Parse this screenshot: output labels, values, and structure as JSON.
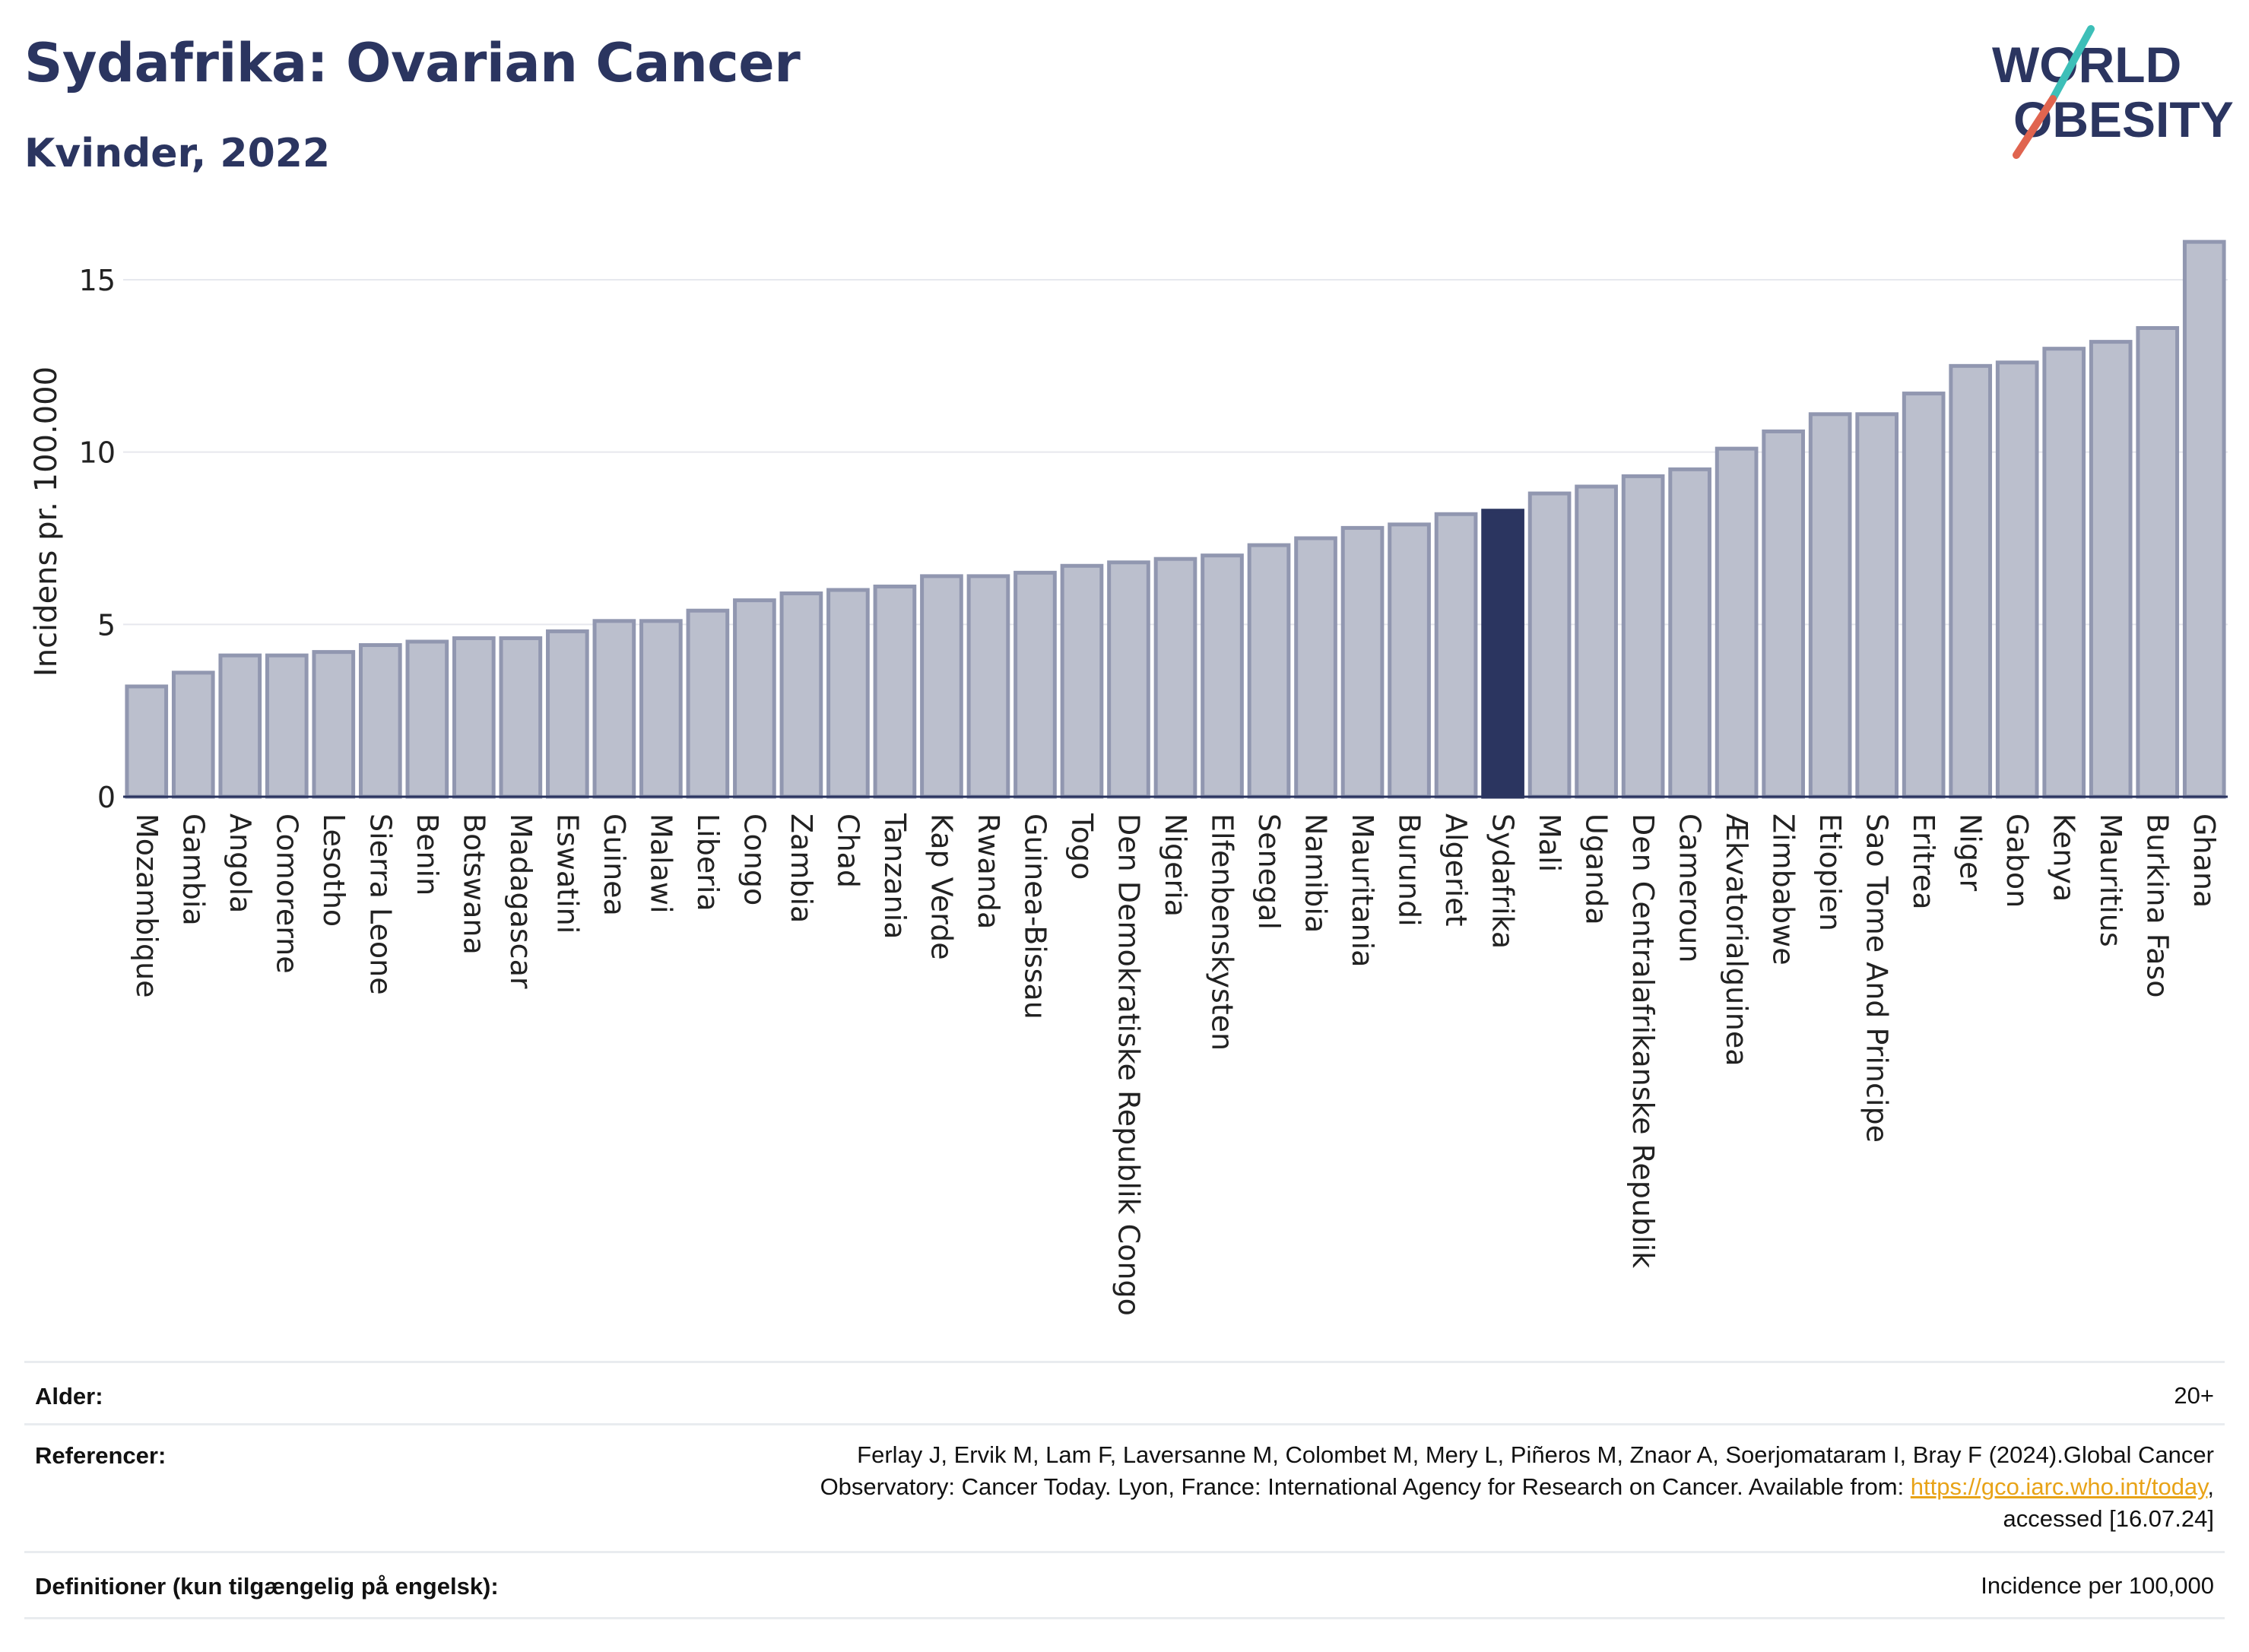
{
  "header": {
    "title": "Sydafrika: Ovarian Cancer",
    "subtitle": "Kvinder, 2022",
    "logo_line1": "WORLD",
    "logo_line2": "OBESITY"
  },
  "colors": {
    "bar": "#bbbfcd",
    "bar_border": "#9197b0",
    "highlight": "#2b3560",
    "title": "#2b3560",
    "grid": "#e6e8ee",
    "link": "#e8a317",
    "logo_teal": "#3dbfb8",
    "logo_red": "#e0644f"
  },
  "chart_data": {
    "type": "bar",
    "title": "Sydafrika: Ovarian Cancer",
    "subtitle": "Kvinder, 2022",
    "xlabel": "",
    "ylabel": "Incidens pr. 100.000",
    "ylim": [
      0,
      16.5
    ],
    "yticks": [
      0,
      5,
      10,
      15
    ],
    "grid": true,
    "highlight": "Sydafrika",
    "categories": [
      "Mozambique",
      "Gambia",
      "Angola",
      "Comorerne",
      "Lesotho",
      "Sierra Leone",
      "Benin",
      "Botswana",
      "Madagascar",
      "Eswatini",
      "Guinea",
      "Malawi",
      "Liberia",
      "Congo",
      "Zambia",
      "Chad",
      "Tanzania",
      "Kap Verde",
      "Rwanda",
      "Guinea-Bissau",
      "Togo",
      "Den Demokratiske Republik Congo",
      "Nigeria",
      "Elfenbenskysten",
      "Senegal",
      "Namibia",
      "Mauritania",
      "Burundi",
      "Algeriet",
      "Sydafrika",
      "Mali",
      "Uganda",
      "Den Centralafrikanske Republik",
      "Cameroun",
      "Ækvatorialguinea",
      "Zimbabwe",
      "Etiopien",
      "Sao Tome And Principe",
      "Eritrea",
      "Niger",
      "Gabon",
      "Kenya",
      "Mauritius",
      "Burkina Faso",
      "Ghana"
    ],
    "values": [
      3.2,
      3.6,
      4.1,
      4.1,
      4.2,
      4.4,
      4.5,
      4.6,
      4.6,
      4.8,
      5.1,
      5.1,
      5.4,
      5.7,
      5.9,
      6.0,
      6.1,
      6.4,
      6.4,
      6.5,
      6.7,
      6.8,
      6.9,
      7.0,
      7.3,
      7.5,
      7.8,
      7.9,
      8.2,
      8.3,
      8.8,
      9.0,
      9.3,
      9.5,
      10.1,
      10.6,
      11.1,
      11.1,
      11.7,
      12.5,
      12.6,
      13.0,
      13.2,
      13.6,
      16.1
    ]
  },
  "info": {
    "age_label": "Alder:",
    "age_value": "20+",
    "ref_label": "Referencer:",
    "ref_line1": "Ferlay J, Ervik M, Lam F, Laversanne M, Colombet M, Mery L, Piñeros M, Znaor A, Soerjomataram I, Bray F (2024).Global Cancer",
    "ref_line2_prefix": "Observatory: Cancer Today. Lyon, France: International Agency for Research on Cancer. Available from: ",
    "ref_link": "https://gco.iarc.who.int/today",
    "ref_line2_suffix": ",",
    "ref_line3": "accessed [16.07.24]",
    "def_label": "Definitioner (kun tilgængelig på engelsk):",
    "def_value": "Incidence per 100,000"
  }
}
